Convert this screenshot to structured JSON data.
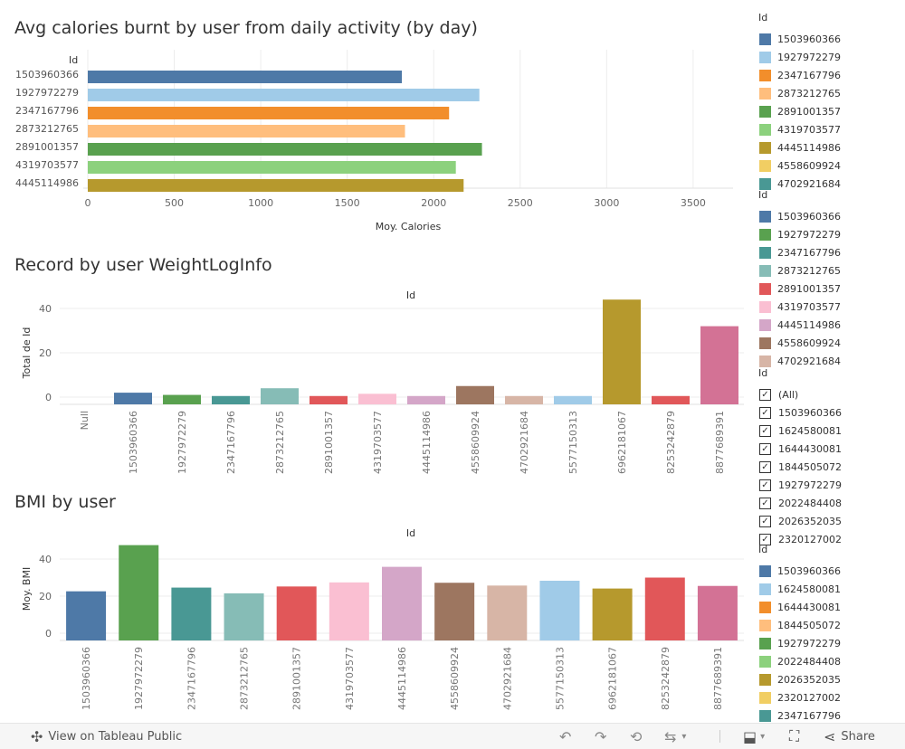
{
  "charts": {
    "chart1": {
      "title": "Avg calories burnt by user from daily activity (by day)"
    },
    "chart2": {
      "title": "Record by user WeightLogInfo"
    },
    "chart3": {
      "title": "BMI by user"
    }
  },
  "chart_data": [
    {
      "type": "bar",
      "orientation": "horizontal",
      "title": "Avg calories burnt by user from daily activity (by day)",
      "dimension_header": "Id",
      "categories": [
        "1503960366",
        "1927972279",
        "2347167796",
        "2873212765",
        "2891001357",
        "4319703577",
        "4445114986"
      ],
      "values": [
        1816,
        2264,
        2089,
        1834,
        2279,
        2128,
        2173
      ],
      "colors": [
        "#4e79a7",
        "#a0cbe8",
        "#f28e2b",
        "#ffbe7d",
        "#59a14f",
        "#8cd17d",
        "#b6992d"
      ],
      "xlabel": "Moy. Calories",
      "xticks": [
        0,
        500,
        1000,
        1500,
        2000,
        2500,
        3000,
        3500
      ],
      "xlim": [
        0,
        3600
      ]
    },
    {
      "type": "bar",
      "title": "Record by user WeightLogInfo",
      "column_header": "Id",
      "categories": [
        "Null",
        "1503960366",
        "1927972279",
        "2347167796",
        "2873212765",
        "2891001357",
        "4319703577",
        "4445114986",
        "4558609924",
        "4702921684",
        "5577150313",
        "6962181067",
        "8253242879",
        "8877689391"
      ],
      "values": [
        0,
        2,
        1,
        0.5,
        4,
        0.5,
        1.5,
        0.5,
        5,
        0.5,
        0.5,
        44,
        0.5,
        32
      ],
      "colors": [
        "#ffffff",
        "#4e79a7",
        "#59a14f",
        "#499894",
        "#86bcb6",
        "#e15759",
        "#fabfd2",
        "#d4a6c8",
        "#9d7660",
        "#d7b5a6",
        "#a0cbe8",
        "#b6992d",
        "#e15759",
        "#d37295"
      ],
      "ylabel": "Total de Id",
      "yticks": [
        0,
        20,
        40
      ],
      "ylim": [
        -5,
        48
      ]
    },
    {
      "type": "bar",
      "title": "BMI by user",
      "column_header": "Id",
      "categories": [
        "1503960366",
        "1927972279",
        "2347167796",
        "2873212765",
        "2891001357",
        "4319703577",
        "4445114986",
        "4558609924",
        "4702921684",
        "5577150313",
        "6962181067",
        "8253242879",
        "8877689391"
      ],
      "values": [
        22.6,
        47.5,
        24.6,
        21.5,
        25.2,
        27.4,
        35.8,
        27.2,
        25.7,
        28.3,
        24.1,
        30.0,
        25.5
      ],
      "colors": [
        "#4e79a7",
        "#59a14f",
        "#499894",
        "#86bcb6",
        "#e15759",
        "#fabfd2",
        "#d4a6c8",
        "#9d7660",
        "#d7b5a6",
        "#a0cbe8",
        "#b6992d",
        "#e15759",
        "#d37295"
      ],
      "ylabel": "Moy. BMI",
      "yticks": [
        0,
        20,
        40
      ],
      "ylim": [
        -4,
        50
      ]
    }
  ],
  "legends": [
    {
      "header": "Id",
      "items": [
        {
          "label": "1503960366",
          "color": "#4e79a7"
        },
        {
          "label": "1927972279",
          "color": "#a0cbe8"
        },
        {
          "label": "2347167796",
          "color": "#f28e2b"
        },
        {
          "label": "2873212765",
          "color": "#ffbe7d"
        },
        {
          "label": "2891001357",
          "color": "#59a14f"
        },
        {
          "label": "4319703577",
          "color": "#8cd17d"
        },
        {
          "label": "4445114986",
          "color": "#b6992d"
        },
        {
          "label": "4558609924",
          "color": "#f1ce63"
        },
        {
          "label": "4702921684",
          "color": "#499894"
        }
      ]
    },
    {
      "header": "Id",
      "items": [
        {
          "label": "1503960366",
          "color": "#4e79a7"
        },
        {
          "label": "1927972279",
          "color": "#59a14f"
        },
        {
          "label": "2347167796",
          "color": "#499894"
        },
        {
          "label": "2873212765",
          "color": "#86bcb6"
        },
        {
          "label": "2891001357",
          "color": "#e15759"
        },
        {
          "label": "4319703577",
          "color": "#fabfd2"
        },
        {
          "label": "4445114986",
          "color": "#d4a6c8"
        },
        {
          "label": "4558609924",
          "color": "#9d7660"
        },
        {
          "label": "4702921684",
          "color": "#d7b5a6"
        }
      ]
    },
    {
      "header": "Id",
      "filter": true,
      "items": [
        {
          "label": "(All)",
          "checked": true
        },
        {
          "label": "1503960366",
          "checked": true
        },
        {
          "label": "1624580081",
          "checked": true
        },
        {
          "label": "1644430081",
          "checked": true
        },
        {
          "label": "1844505072",
          "checked": true
        },
        {
          "label": "1927972279",
          "checked": true
        },
        {
          "label": "2022484408",
          "checked": true
        },
        {
          "label": "2026352035",
          "checked": true
        },
        {
          "label": "2320127002",
          "checked": true
        }
      ]
    },
    {
      "header": "Id",
      "items": [
        {
          "label": "1503960366",
          "color": "#4e79a7"
        },
        {
          "label": "1624580081",
          "color": "#a0cbe8"
        },
        {
          "label": "1644430081",
          "color": "#f28e2b"
        },
        {
          "label": "1844505072",
          "color": "#ffbe7d"
        },
        {
          "label": "1927972279",
          "color": "#59a14f"
        },
        {
          "label": "2022484408",
          "color": "#8cd17d"
        },
        {
          "label": "2026352035",
          "color": "#b6992d"
        },
        {
          "label": "2320127002",
          "color": "#f1ce63"
        },
        {
          "label": "2347167796",
          "color": "#499894"
        }
      ]
    }
  ],
  "footer": {
    "view_label": "View on Tableau Public",
    "share_label": "Share"
  }
}
